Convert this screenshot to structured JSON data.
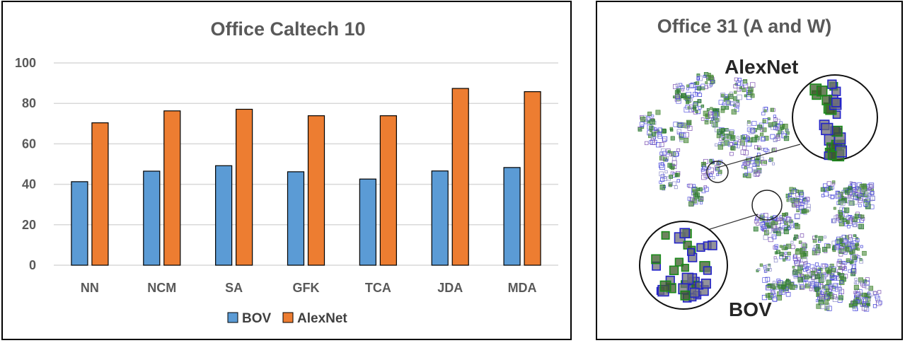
{
  "colors": {
    "bov": "#5b9bd5",
    "alexnet": "#ed7d31",
    "grid": "#d9d9d9",
    "text": "#595959"
  },
  "chart_data": [
    {
      "type": "bar",
      "title": "Office Caltech 10",
      "categories": [
        "NN",
        "NCM",
        "SA",
        "GFK",
        "TCA",
        "JDA",
        "MDA"
      ],
      "series": [
        {
          "name": "BOV",
          "values": [
            41.3,
            46.5,
            49.2,
            46.2,
            42.6,
            46.6,
            48.3
          ]
        },
        {
          "name": "AlexNet",
          "values": [
            70.4,
            76.3,
            77.1,
            73.9,
            73.9,
            87.4,
            85.8
          ]
        }
      ],
      "ylim": [
        0,
        100
      ],
      "yticks": [
        0,
        20,
        40,
        60,
        80,
        100
      ],
      "grid": true,
      "legend_position": "bottom"
    }
  ],
  "tsne_panel": {
    "title": "Office 31 (A and W)",
    "label_top": "AlexNet",
    "label_bottom": "BOV"
  }
}
